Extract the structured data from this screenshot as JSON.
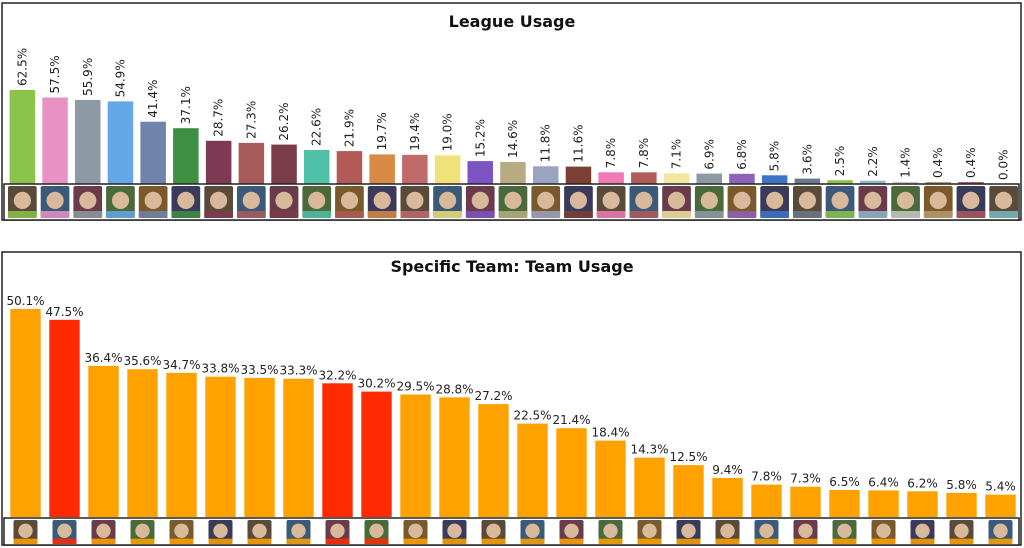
{
  "chart_data": [
    {
      "type": "bar",
      "title": "League Usage",
      "categories": [
        "Lucio",
        "D.Va",
        "Orisa",
        "Mei",
        "Ana",
        "Brigitte",
        "Junkrat",
        "McCree",
        "Reaper",
        "Zarya",
        "Baptiste",
        "Tracer",
        "Widowmaker",
        "Wrecking Ball",
        "Sombra",
        "Hanzo",
        "Reinhardt",
        "Doomfist",
        "Zenyatta",
        "Ashe",
        "Mercy",
        "Wrecking Ball 2",
        "Symmetra",
        "Pharah",
        "Soldier: 76",
        "Genji",
        "Echo",
        "Sigma",
        "Roadhog",
        "Torbjorn",
        "Bastion"
      ],
      "icons": [
        "lucio-icon",
        "dva-icon",
        "orisa-icon",
        "mei-icon",
        "ana-icon",
        "brigitte-icon",
        "junkrat-icon",
        "mccree-icon",
        "reaper-icon",
        "zarya-icon",
        "baptiste-icon",
        "tracer-icon",
        "widowmaker-icon",
        "sigma-icon",
        "sombra-icon",
        "hanzo-icon",
        "reinhardt-icon",
        "doomfist-icon",
        "zenyatta-icon",
        "ashe-icon",
        "mercy-icon",
        "hammond-icon",
        "symmetra-icon",
        "pharah-icon",
        "soldier76-icon",
        "genji-icon",
        "echo-icon",
        "ashe2-icon",
        "roadhog-icon",
        "torbjorn-icon",
        "bastion-icon"
      ],
      "values": [
        62.5,
        57.5,
        55.9,
        54.9,
        41.4,
        37.1,
        28.7,
        27.3,
        26.2,
        22.6,
        21.9,
        19.7,
        19.4,
        19.0,
        15.2,
        14.6,
        11.8,
        11.6,
        7.8,
        7.8,
        7.1,
        6.9,
        6.8,
        5.8,
        3.6,
        2.5,
        2.2,
        1.4,
        0.4,
        0.4,
        0.0
      ],
      "labels": [
        "62.5%",
        "57.5%",
        "55.9%",
        "54.9%",
        "41.4%",
        "37.1%",
        "28.7%",
        "27.3%",
        "26.2%",
        "22.6%",
        "21.9%",
        "19.7%",
        "19.4%",
        "19.0%",
        "15.2%",
        "14.6%",
        "11.8%",
        "11.6%",
        "7.8%",
        "7.8%",
        "7.1%",
        "6.9%",
        "6.8%",
        "5.8%",
        "3.6%",
        "2.5%",
        "2.2%",
        "1.4%",
        "0.4%",
        "0.4%",
        "0.0%"
      ],
      "colors": [
        "#8bc34a",
        "#e991c4",
        "#8e9aa3",
        "#64a8e8",
        "#6f84a8",
        "#3e8e44",
        "#7e3a52",
        "#a85b5b",
        "#7a3c48",
        "#4fc1a9",
        "#b25a55",
        "#d88a44",
        "#c06a6a",
        "#efe27a",
        "#7b55c4",
        "#b8ab82",
        "#9aa3c2",
        "#7b3f35",
        "#f07ab6",
        "#b35b5b",
        "#f1e8a0",
        "#8e9aa3",
        "#8d62b8",
        "#3e74c6",
        "#6b778a",
        "#8bc34a",
        "#8fb8c6",
        "#c7c7c7",
        "#b59b6e",
        "#a85b5b",
        "#79b9c4"
      ],
      "ylim": [
        0,
        62.5
      ],
      "grid": false,
      "xlabel": "",
      "ylabel": ""
    },
    {
      "type": "bar",
      "title": "Specific Team: Team Usage",
      "categories": [
        "D.Va",
        "Lucio",
        "Junkrat",
        "Soldier: 76",
        "Brigitte",
        "Sombra",
        "Ana",
        "Pharah",
        "Lucio 2",
        "Tracer",
        "Baptiste",
        "Reinhardt",
        "Ana 2",
        "Doomfist",
        "Hammond",
        "Mei",
        "Genji",
        "Zenyatta",
        "Widowmaker",
        "Soldier 76 2",
        "Reaper",
        "Roadhog",
        "Brigitte 2",
        "Ashe",
        "McCree",
        "Cassidy"
      ],
      "icons": [
        "dva-icon",
        "lucio-icon",
        "junkrat-icon",
        "soldier76-icon",
        "brigitte-icon",
        "sombra-icon",
        "ana-icon",
        "pharah-icon",
        "lucio-icon",
        "tracer-icon",
        "baptiste-icon",
        "reinhardt-icon",
        "ana-icon",
        "doomfist-icon",
        "hammond-icon",
        "mei-icon",
        "genji-icon",
        "zenyatta-icon",
        "widowmaker-icon",
        "soldier76-icon",
        "reaper-icon",
        "roadhog-icon",
        "brigitte-icon",
        "ashe-icon",
        "mccree-icon",
        "cassidy-icon"
      ],
      "values": [
        50.1,
        47.5,
        36.4,
        35.6,
        34.7,
        33.8,
        33.5,
        33.3,
        32.2,
        30.2,
        29.5,
        28.8,
        27.2,
        22.5,
        21.4,
        18.4,
        14.3,
        12.5,
        9.4,
        7.8,
        7.3,
        6.5,
        6.4,
        6.2,
        5.8,
        5.4
      ],
      "labels": [
        "50.1%",
        "47.5%",
        "36.4%",
        "35.6%",
        "34.7%",
        "33.8%",
        "33.5%",
        "33.3%",
        "32.2%",
        "30.2%",
        "29.5%",
        "28.8%",
        "27.2%",
        "22.5%",
        "21.4%",
        "18.4%",
        "14.3%",
        "12.5%",
        "9.4%",
        "7.8%",
        "7.3%",
        "6.5%",
        "6.4%",
        "6.2%",
        "5.8%",
        "5.4%"
      ],
      "colors": [
        "#ffa200",
        "#ff2a00",
        "#ffa200",
        "#ffa200",
        "#ffa200",
        "#ffa200",
        "#ffa200",
        "#ffa200",
        "#ff2a00",
        "#ff2a00",
        "#ffa200",
        "#ffa200",
        "#ffa200",
        "#ffa200",
        "#ffa200",
        "#ffa200",
        "#ffa200",
        "#ffa200",
        "#ffa200",
        "#ffa200",
        "#ffa200",
        "#ffa200",
        "#ffa200",
        "#ffa200",
        "#ffa200",
        "#ffa200"
      ],
      "ylim": [
        0,
        50.1
      ],
      "grid": false,
      "xlabel": "",
      "ylabel": ""
    }
  ]
}
